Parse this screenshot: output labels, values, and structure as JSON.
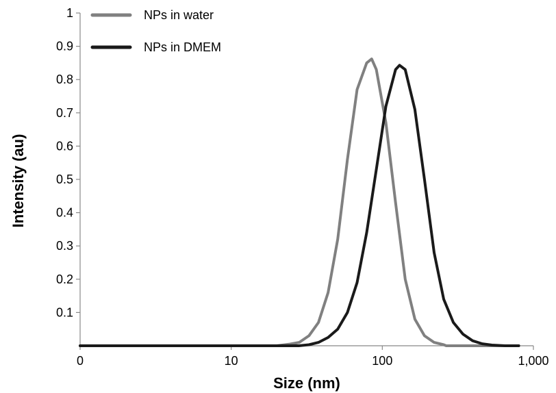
{
  "chart_data": {
    "type": "line",
    "title": "",
    "xlabel": "Size (nm)",
    "ylabel": "Intensity (au)",
    "x_scale": "log",
    "xlim": [
      1,
      1000
    ],
    "ylim": [
      0,
      1
    ],
    "x_ticks": [
      {
        "value": 1,
        "label": "0"
      },
      {
        "value": 10,
        "label": "10"
      },
      {
        "value": 100,
        "label": "100"
      },
      {
        "value": 1000,
        "label": "1,000"
      }
    ],
    "y_ticks": [
      {
        "value": 0.1,
        "label": "0.1"
      },
      {
        "value": 0.2,
        "label": "0.2"
      },
      {
        "value": 0.3,
        "label": "0.3"
      },
      {
        "value": 0.4,
        "label": "0.4"
      },
      {
        "value": 0.5,
        "label": "0.5"
      },
      {
        "value": 0.6,
        "label": "0.6"
      },
      {
        "value": 0.7,
        "label": "0.7"
      },
      {
        "value": 0.8,
        "label": "0.8"
      },
      {
        "value": 0.9,
        "label": "0.9"
      },
      {
        "value": 1,
        "label": "1"
      }
    ],
    "grid": false,
    "legend_position": "top-left",
    "series": [
      {
        "name": "NPs in water",
        "color": "#808080",
        "x": [
          1,
          20,
          24.4,
          28.2,
          32.7,
          37.8,
          43.8,
          50.7,
          58.8,
          68.1,
          78.8,
          85,
          91.3,
          105.7,
          122.4,
          141.8,
          164.2,
          190.1,
          220.2,
          255,
          265,
          800
        ],
        "y": [
          0,
          0,
          0.005,
          0.01,
          0.03,
          0.07,
          0.16,
          0.32,
          0.56,
          0.77,
          0.85,
          0.862,
          0.83,
          0.67,
          0.43,
          0.2,
          0.08,
          0.03,
          0.01,
          0.003,
          0,
          0
        ]
      },
      {
        "name": "NPs in DMEM",
        "color": "#1a1a1a",
        "x": [
          1,
          28,
          32.7,
          37.8,
          43.8,
          50.7,
          58.8,
          68.1,
          78.8,
          91.3,
          105.7,
          122.4,
          130,
          141.8,
          164.2,
          190.1,
          220.2,
          255,
          295.3,
          341.9,
          396,
          458.6,
          531.1,
          650,
          800
        ],
        "y": [
          0,
          0,
          0.003,
          0.01,
          0.025,
          0.05,
          0.1,
          0.19,
          0.34,
          0.53,
          0.72,
          0.83,
          0.843,
          0.83,
          0.71,
          0.5,
          0.28,
          0.14,
          0.07,
          0.035,
          0.015,
          0.006,
          0.002,
          0,
          0
        ]
      }
    ]
  }
}
